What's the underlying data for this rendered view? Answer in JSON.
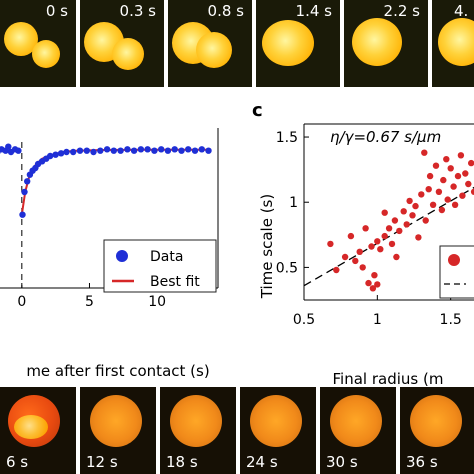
{
  "top_strip": {
    "frames": [
      {
        "time": ""
      },
      {
        "time": "0 s"
      },
      {
        "time": "0.3 s"
      },
      {
        "time": "0.8 s"
      },
      {
        "time": "1.4 s"
      },
      {
        "time": "2.2 s"
      },
      {
        "time": "4."
      }
    ]
  },
  "bottom_strip": {
    "frames": [
      {
        "time": "6 s"
      },
      {
        "time": "12 s"
      },
      {
        "time": "18 s"
      },
      {
        "time": "24 s"
      },
      {
        "time": "30 s"
      },
      {
        "time": "36 s"
      }
    ]
  },
  "panel_b": {
    "xlabel": "me after first contact (s)",
    "legend": [
      "Data",
      "Best fit"
    ],
    "colors": {
      "data": "#1f2fd6",
      "fit": "#d62728",
      "dashed": "#000000"
    }
  },
  "panel_c": {
    "panel_label": "c",
    "ylabel": "Time scale (s)",
    "xlabel": "Final radius (m",
    "annotation": "η/γ=0.67 s/μm",
    "colors": {
      "points": "#d62728",
      "fit": "#000000"
    }
  },
  "chart_data": [
    {
      "type": "scatter",
      "xlabel": "me after first contact (s)",
      "ylabel": "",
      "xlim": [
        -2.5,
        14.5
      ],
      "ylim": [
        0,
        1.2
      ],
      "xticks": [
        0,
        5,
        10
      ],
      "yticks": [],
      "series": [
        {
          "name": "Data",
          "points": [
            [
              -2.3,
              1.03
            ],
            [
              -2.0,
              1.05
            ],
            [
              -1.8,
              1.02
            ],
            [
              -1.5,
              1.04
            ],
            [
              -1.2,
              1.03
            ],
            [
              -1.0,
              1.06
            ],
            [
              -0.8,
              1.02
            ],
            [
              -0.5,
              1.04
            ],
            [
              -0.25,
              1.03
            ],
            [
              0.05,
              0.55
            ],
            [
              0.2,
              0.72
            ],
            [
              0.4,
              0.8
            ],
            [
              0.6,
              0.85
            ],
            [
              0.8,
              0.88
            ],
            [
              1.0,
              0.9
            ],
            [
              1.2,
              0.93
            ],
            [
              1.5,
              0.95
            ],
            [
              1.8,
              0.97
            ],
            [
              2.1,
              0.99
            ],
            [
              2.5,
              1.0
            ],
            [
              2.9,
              1.01
            ],
            [
              3.3,
              1.02
            ],
            [
              3.8,
              1.02
            ],
            [
              4.3,
              1.03
            ],
            [
              4.8,
              1.03
            ],
            [
              5.3,
              1.02
            ],
            [
              5.8,
              1.03
            ],
            [
              6.3,
              1.04
            ],
            [
              6.8,
              1.03
            ],
            [
              7.3,
              1.03
            ],
            [
              7.8,
              1.04
            ],
            [
              8.3,
              1.03
            ],
            [
              8.8,
              1.04
            ],
            [
              9.3,
              1.04
            ],
            [
              9.8,
              1.03
            ],
            [
              10.3,
              1.04
            ],
            [
              10.8,
              1.03
            ],
            [
              11.3,
              1.04
            ],
            [
              11.8,
              1.03
            ],
            [
              12.3,
              1.04
            ],
            [
              12.8,
              1.03
            ],
            [
              13.3,
              1.04
            ],
            [
              13.8,
              1.03
            ]
          ]
        },
        {
          "name": "Best fit",
          "kind": "line",
          "points": [
            [
              0,
              0.55
            ],
            [
              0.25,
              0.72
            ],
            [
              0.5,
              0.82
            ],
            [
              0.75,
              0.88
            ],
            [
              1.0,
              0.92
            ],
            [
              1.5,
              0.97
            ],
            [
              2.0,
              0.99
            ],
            [
              3.0,
              1.02
            ],
            [
              4.0,
              1.03
            ],
            [
              6.0,
              1.035
            ],
            [
              9.0,
              1.037
            ],
            [
              14.0,
              1.037
            ]
          ]
        }
      ],
      "annotations": [
        "vertical dashed line at x = 0"
      ]
    },
    {
      "type": "scatter",
      "xlabel": "Final radius (m",
      "ylabel": "Time scale (s)",
      "xlim": [
        0.5,
        1.7
      ],
      "ylim": [
        0.25,
        1.6
      ],
      "xticks": [
        0.5,
        1,
        1.5
      ],
      "xtick_labels": [
        "0.5",
        "1",
        "1.5"
      ],
      "yticks": [
        0.5,
        1,
        1.5
      ],
      "ytick_labels": [
        "0.5",
        "1",
        "1.5"
      ],
      "series": [
        {
          "points": [
            [
              0.68,
              0.68
            ],
            [
              0.72,
              0.48
            ],
            [
              0.78,
              0.58
            ],
            [
              0.82,
              0.74
            ],
            [
              0.85,
              0.55
            ],
            [
              0.88,
              0.62
            ],
            [
              0.9,
              0.5
            ],
            [
              0.92,
              0.8
            ],
            [
              0.94,
              0.38
            ],
            [
              0.96,
              0.66
            ],
            [
              0.97,
              0.34
            ],
            [
              0.98,
              0.44
            ],
            [
              1.0,
              0.37
            ],
            [
              1.0,
              0.7
            ],
            [
              1.02,
              0.64
            ],
            [
              1.05,
              0.74
            ],
            [
              1.05,
              0.92
            ],
            [
              1.08,
              0.8
            ],
            [
              1.1,
              0.68
            ],
            [
              1.12,
              0.86
            ],
            [
              1.13,
              0.58
            ],
            [
              1.15,
              0.78
            ],
            [
              1.18,
              0.93
            ],
            [
              1.2,
              0.83
            ],
            [
              1.22,
              1.01
            ],
            [
              1.24,
              0.9
            ],
            [
              1.26,
              0.97
            ],
            [
              1.28,
              0.73
            ],
            [
              1.3,
              1.06
            ],
            [
              1.32,
              1.38
            ],
            [
              1.33,
              0.86
            ],
            [
              1.35,
              1.1
            ],
            [
              1.36,
              1.2
            ],
            [
              1.38,
              0.98
            ],
            [
              1.4,
              1.28
            ],
            [
              1.42,
              1.08
            ],
            [
              1.44,
              0.94
            ],
            [
              1.45,
              1.17
            ],
            [
              1.47,
              1.33
            ],
            [
              1.48,
              1.02
            ],
            [
              1.5,
              1.26
            ],
            [
              1.52,
              1.12
            ],
            [
              1.53,
              0.98
            ],
            [
              1.55,
              1.2
            ],
            [
              1.57,
              1.36
            ],
            [
              1.58,
              1.05
            ],
            [
              1.6,
              1.22
            ],
            [
              1.62,
              1.14
            ],
            [
              1.64,
              1.3
            ],
            [
              1.66,
              1.08
            ]
          ]
        },
        {
          "kind": "line",
          "points": [
            [
              0.5,
              0.36
            ],
            [
              1.7,
              1.14
            ]
          ]
        }
      ]
    }
  ]
}
